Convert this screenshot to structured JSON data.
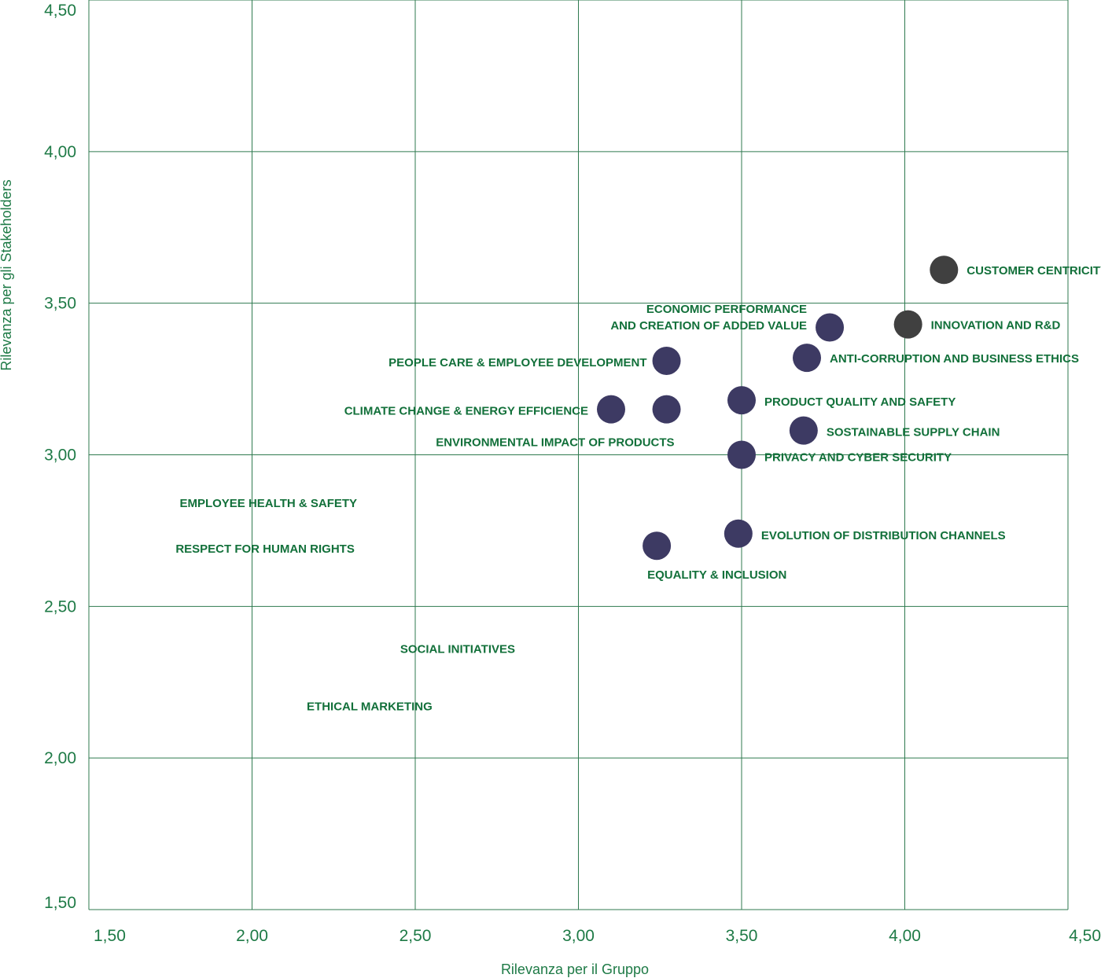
{
  "chart_data": {
    "type": "scatter",
    "xlabel": "Rilevanza per il Gruppo",
    "ylabel": "Rilevanza per gli Stakeholders",
    "xlim": [
      1.5,
      4.5
    ],
    "ylim": [
      1.5,
      4.5
    ],
    "x_ticks": [
      "1,50",
      "2,00",
      "2,50",
      "3,00",
      "3,50",
      "4,00",
      "4,50"
    ],
    "y_ticks": [
      "1,50",
      "2,00",
      "2,50",
      "3,00",
      "3,50",
      "4,00",
      "4,50"
    ],
    "grid": true,
    "colors": {
      "point": "#3d3a63",
      "highlight": "#404040",
      "label": "#12703a",
      "grid": "#2f7a4f"
    },
    "points": [
      {
        "x": 4.12,
        "y": 3.61,
        "label": [
          "CUSTOMER CENTRICITY"
        ],
        "highlight": true
      },
      {
        "x": 4.01,
        "y": 3.43,
        "label": [
          "INNOVATION AND R&D"
        ],
        "highlight": true
      },
      {
        "x": 3.77,
        "y": 3.42,
        "label": [
          "ECONOMIC PERFORMANCE",
          "AND CREATION OF ADDED VALUE"
        ]
      },
      {
        "x": 3.7,
        "y": 3.32,
        "label": [
          "ANTI-CORRUPTION AND BUSINESS ETHICS"
        ]
      },
      {
        "x": 3.27,
        "y": 3.31,
        "label": [
          "PEOPLE CARE & EMPLOYEE DEVELOPMENT"
        ]
      },
      {
        "x": 3.5,
        "y": 3.18,
        "label": [
          "PRODUCT QUALITY AND SAFETY"
        ]
      },
      {
        "x": 3.1,
        "y": 3.15,
        "label": [
          "CLIMATE CHANGE & ENERGY EFFICIENCE"
        ]
      },
      {
        "x": 3.27,
        "y": 3.15,
        "label": [
          "ENVIRONMENTAL IMPACT OF PRODUCTS"
        ]
      },
      {
        "x": 3.69,
        "y": 3.08,
        "label": [
          "SOSTAINABLE SUPPLY CHAIN"
        ]
      },
      {
        "x": 3.5,
        "y": 3.0,
        "label": [
          "PRIVACY AND CYBER SECURITY"
        ]
      },
      {
        "x": 3.49,
        "y": 2.74,
        "label": [
          "EVOLUTION OF DISTRIBUTION CHANNELS"
        ]
      },
      {
        "x": 3.24,
        "y": 2.7,
        "label": [
          "EQUALITY & INCLUSION"
        ]
      }
    ],
    "unplotted_labels": [
      {
        "x": 2.05,
        "y": 2.84,
        "label": "EMPLOYEE HEALTH & SAFETY"
      },
      {
        "x": 2.04,
        "y": 2.69,
        "label": "RESPECT FOR HUMAN RIGHTS"
      },
      {
        "x": 2.63,
        "y": 2.36,
        "label": "SOCIAL INITIATIVES"
      },
      {
        "x": 2.36,
        "y": 2.17,
        "label": "ETHICAL MARKETING"
      }
    ]
  }
}
